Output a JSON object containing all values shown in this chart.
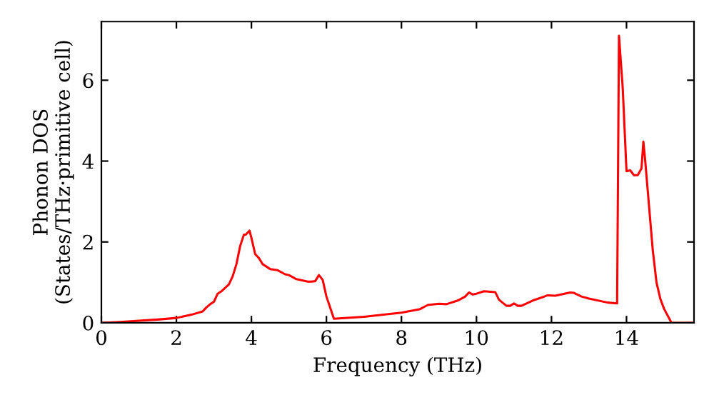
{
  "chart_data": {
    "type": "line",
    "xlabel": "Frequency (THz)",
    "ylabel": "Phonon DOS\n(States/THz·primitive cell)",
    "xlim": [
      0,
      15.8
    ],
    "ylim": [
      0,
      7.45
    ],
    "xticks": [
      0,
      2,
      4,
      6,
      8,
      10,
      12,
      14
    ],
    "yticks": [
      0,
      2,
      4,
      6
    ],
    "grid": false,
    "marker": "none",
    "line_style": "solid",
    "series": [
      {
        "color": "#ff0000",
        "x": [
          0,
          0.5,
          1.0,
          1.5,
          2.0,
          2.4,
          2.7,
          2.8,
          2.9,
          3.0,
          3.1,
          3.2,
          3.4,
          3.5,
          3.6,
          3.7,
          3.8,
          3.85,
          3.95,
          4.0,
          4.1,
          4.2,
          4.3,
          4.5,
          4.7,
          4.9,
          5.0,
          5.2,
          5.5,
          5.6,
          5.7,
          5.8,
          5.9,
          6.0,
          6.2,
          7.0,
          8.0,
          8.5,
          8.7,
          9.0,
          9.2,
          9.5,
          9.7,
          9.8,
          9.9,
          10.0,
          10.2,
          10.5,
          10.6,
          10.8,
          10.9,
          11.0,
          11.1,
          11.2,
          11.5,
          11.9,
          12.1,
          12.5,
          12.6,
          12.8,
          13.0,
          13.5,
          13.75,
          13.8,
          13.9,
          14.0,
          14.1,
          14.2,
          14.3,
          14.4,
          14.45,
          14.5,
          14.6,
          14.7,
          14.8,
          14.9,
          15.0,
          15.2,
          15.8
        ],
        "values": [
          0,
          0.02,
          0.05,
          0.08,
          0.12,
          0.2,
          0.28,
          0.38,
          0.46,
          0.52,
          0.72,
          0.78,
          0.95,
          1.15,
          1.45,
          1.9,
          2.18,
          2.18,
          2.28,
          2.1,
          1.7,
          1.6,
          1.45,
          1.33,
          1.3,
          1.2,
          1.18,
          1.08,
          1.02,
          1.02,
          1.03,
          1.18,
          1.06,
          0.65,
          0.1,
          0.15,
          0.25,
          0.34,
          0.44,
          0.47,
          0.46,
          0.55,
          0.65,
          0.75,
          0.7,
          0.72,
          0.78,
          0.76,
          0.57,
          0.42,
          0.42,
          0.48,
          0.42,
          0.42,
          0.55,
          0.68,
          0.67,
          0.75,
          0.74,
          0.65,
          0.6,
          0.5,
          0.48,
          7.1,
          5.8,
          3.75,
          3.77,
          3.65,
          3.65,
          3.82,
          4.48,
          4.0,
          2.9,
          1.8,
          1.0,
          0.6,
          0.35,
          0,
          0
        ]
      }
    ]
  }
}
